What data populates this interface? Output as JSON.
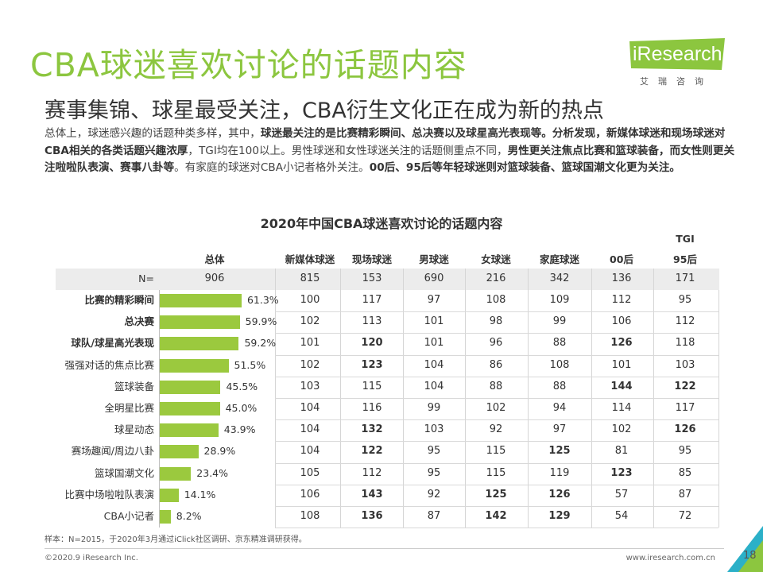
{
  "header": {
    "title": "CBA球迷喜欢讨论的话题内容",
    "subtitle": "赛事集锦、球星最受关注，CBA衍生文化正在成为新的热点",
    "intro_parts": [
      {
        "text": "总体上，球迷感兴趣的话题种类多样，其中，",
        "bold": false
      },
      {
        "text": "球迷最关注的是比赛精彩瞬间、总决赛以及球星高光表现等。分析发现，新媒体球迷和现场球迷对CBA相关的各类话题兴趣浓厚",
        "bold": true
      },
      {
        "text": "，TGI均在100以上。男性球迷和女性球迷关注的话题侧重点不同，",
        "bold": false
      },
      {
        "text": "男性更关注焦点比赛和篮球装备，而女性则更关注啦啦队表演、赛事八卦等",
        "bold": true
      },
      {
        "text": "。有家庭的球迷对CBA小记者格外关注。",
        "bold": false
      },
      {
        "text": "00后、95后等年轻球迷则对篮球装备、篮球国潮文化更为关注。",
        "bold": true
      }
    ]
  },
  "logo": {
    "text": "iResearch",
    "sub": "艾瑞咨询",
    "color": "#8cc63f"
  },
  "chart_data": {
    "type": "bar",
    "title": "2020年中国CBA球迷喜欢讨论的话题内容",
    "tgi_label": "TGI",
    "overall_header": "总体",
    "n_label": "N=",
    "n_overall": 906,
    "columns": [
      "新媒体球迷",
      "现场球迷",
      "男球迷",
      "女球迷",
      "家庭球迷",
      "00后",
      "95后"
    ],
    "n_values": [
      815,
      153,
      690,
      216,
      342,
      136,
      171
    ],
    "categories": [
      "比赛的精彩瞬间",
      "总决赛",
      "球队/球星高光表现",
      "强强对话的焦点比赛",
      "篮球装备",
      "全明星比赛",
      "球星动态",
      "赛场趣闻/周边八卦",
      "篮球国潮文化",
      "比赛中场啦啦队表演",
      "CBA小记者"
    ],
    "bold_categories": [
      true,
      true,
      true,
      false,
      false,
      false,
      false,
      false,
      false,
      false,
      false
    ],
    "values": [
      61.3,
      59.9,
      59.2,
      51.5,
      45.5,
      45.0,
      43.9,
      28.9,
      23.4,
      14.1,
      8.2
    ],
    "pct_labels": [
      "61.3%",
      "59.9%",
      "59.2%",
      "51.5%",
      "45.5%",
      "45.0%",
      "43.9%",
      "28.9%",
      "23.4%",
      "14.1%",
      "8.2%"
    ],
    "tgi": [
      [
        100,
        117,
        97,
        108,
        109,
        112,
        95
      ],
      [
        102,
        113,
        101,
        98,
        99,
        106,
        112
      ],
      [
        101,
        120,
        101,
        96,
        88,
        126,
        118
      ],
      [
        102,
        123,
        104,
        86,
        108,
        101,
        103
      ],
      [
        103,
        115,
        104,
        88,
        88,
        144,
        122
      ],
      [
        104,
        116,
        99,
        102,
        94,
        114,
        117
      ],
      [
        104,
        132,
        103,
        92,
        97,
        102,
        126
      ],
      [
        104,
        122,
        95,
        115,
        125,
        81,
        95
      ],
      [
        105,
        112,
        95,
        115,
        119,
        123,
        85
      ],
      [
        106,
        143,
        92,
        125,
        126,
        57,
        87
      ],
      [
        108,
        136,
        87,
        142,
        129,
        54,
        72
      ]
    ],
    "bar_color": "#9bc93e"
  },
  "footer": {
    "note": "样本：N=2015，于2020年3月通过iClick社区调研、京东精准调研获得。",
    "copyright": "©2020.9 iResearch Inc.",
    "website": "www.iresearch.com.cn",
    "page": "18"
  }
}
